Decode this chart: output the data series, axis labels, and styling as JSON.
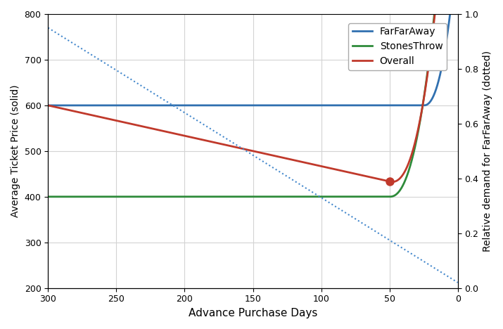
{
  "title": "",
  "xlabel": "Advance Purchase Days",
  "ylabel_left": "Average Ticket Price (solid)",
  "ylabel_right": "Relative demand for FarFarAway (dotted)",
  "xlim": [
    300,
    0
  ],
  "ylim_left": [
    200,
    800
  ],
  "ylim_right": [
    0.0,
    1.0
  ],
  "xticks": [
    300,
    250,
    200,
    150,
    100,
    50,
    0
  ],
  "yticks_left": [
    200,
    300,
    400,
    500,
    600,
    700,
    800
  ],
  "yticks_right": [
    0.0,
    0.2,
    0.4,
    0.6,
    0.8,
    1.0
  ],
  "farfaraway_color": "#3070b0",
  "stonesthrow_color": "#2e8b3a",
  "overall_color": "#c0392b",
  "demand_color": "#4488cc",
  "farfaraway_base": 600,
  "stonesthrow_base": 400,
  "dot_day": 50,
  "legend_labels": [
    "FarFarAway",
    "StonesThrow",
    "Overall"
  ],
  "figsize": [
    7.15,
    4.68
  ],
  "dpi": 100
}
